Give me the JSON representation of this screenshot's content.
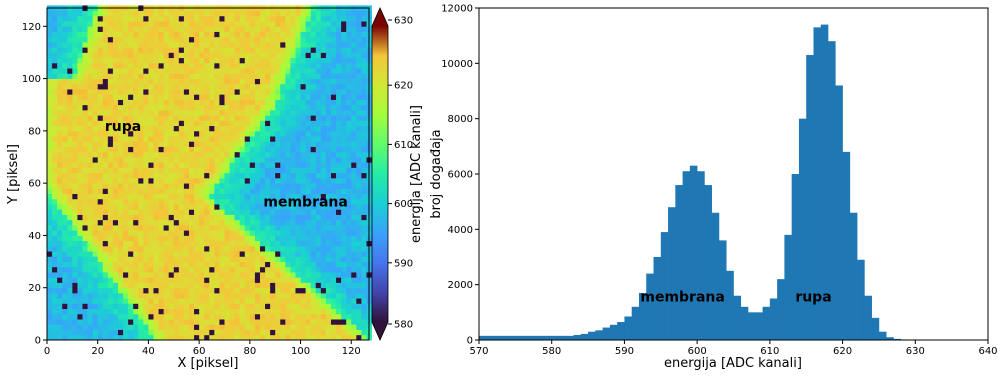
{
  "chart_data": [
    {
      "type": "heatmap",
      "xlabel": "X [piksel]",
      "ylabel": "Y [piksel]",
      "xlim": [
        0,
        127
      ],
      "ylim": [
        0,
        127
      ],
      "xticks": [
        0,
        20,
        40,
        60,
        80,
        100,
        120
      ],
      "yticks": [
        0,
        20,
        40,
        60,
        80,
        100,
        120
      ],
      "grid": false,
      "colormap": "turbo",
      "colorbar": {
        "label": "energija [ADC kanali]",
        "range": [
          580,
          630
        ],
        "ticks": [
          580,
          590,
          600,
          610,
          620,
          630
        ],
        "extend": "both"
      },
      "annotations": [
        {
          "text": "rupa",
          "x": 30,
          "y": 80
        },
        {
          "text": "membrana",
          "x": 102,
          "y": 51
        }
      ]
    },
    {
      "type": "bar",
      "xlabel": "energija [ADC kanali]",
      "ylabel": "broj događaja",
      "xlim": [
        570,
        640
      ],
      "ylim": [
        0,
        12000
      ],
      "xticks": [
        570,
        580,
        590,
        600,
        610,
        620,
        630,
        640
      ],
      "yticks": [
        0,
        2000,
        4000,
        6000,
        8000,
        10000,
        12000
      ],
      "grid": false,
      "color": "#1f77b4",
      "bin_width": 1,
      "bin_starts": [
        570,
        571,
        572,
        573,
        574,
        575,
        576,
        577,
        578,
        579,
        580,
        581,
        582,
        583,
        584,
        585,
        586,
        587,
        588,
        589,
        590,
        591,
        592,
        593,
        594,
        595,
        596,
        597,
        598,
        599,
        600,
        601,
        602,
        603,
        604,
        605,
        606,
        607,
        608,
        609,
        610,
        611,
        612,
        613,
        614,
        615,
        616,
        617,
        618,
        619,
        620,
        621,
        622,
        623,
        624,
        625,
        626,
        627,
        628,
        629
      ],
      "values": [
        150,
        150,
        150,
        150,
        150,
        150,
        150,
        150,
        150,
        150,
        150,
        150,
        150,
        180,
        220,
        300,
        350,
        450,
        550,
        650,
        850,
        1200,
        1700,
        2400,
        3000,
        3900,
        4800,
        5600,
        6100,
        6300,
        6100,
        5600,
        4600,
        3600,
        2500,
        1600,
        1200,
        1000,
        1000,
        1200,
        1500,
        2200,
        3800,
        6000,
        8000,
        10300,
        11300,
        11400,
        10800,
        9200,
        6800,
        4600,
        2900,
        1600,
        800,
        300,
        100,
        40,
        20,
        10
      ],
      "annotations": [
        {
          "text": "membrana",
          "x": 598,
          "y": 1400
        },
        {
          "text": "rupa",
          "x": 616,
          "y": 1400
        }
      ]
    }
  ]
}
